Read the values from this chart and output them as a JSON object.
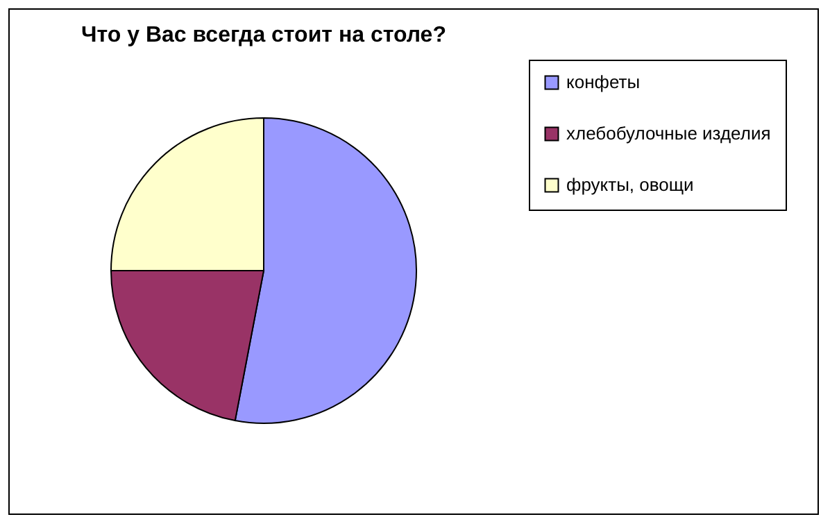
{
  "chart_data": {
    "type": "pie",
    "title": "Что у Вас всегда стоит на столе?",
    "categories": [
      "конфеты",
      "хлебобулочные изделия",
      "фрукты, овощи"
    ],
    "values": [
      53,
      22,
      25
    ],
    "colors": [
      "#9999ff",
      "#993366",
      "#ffffcc"
    ],
    "legend": "right"
  }
}
